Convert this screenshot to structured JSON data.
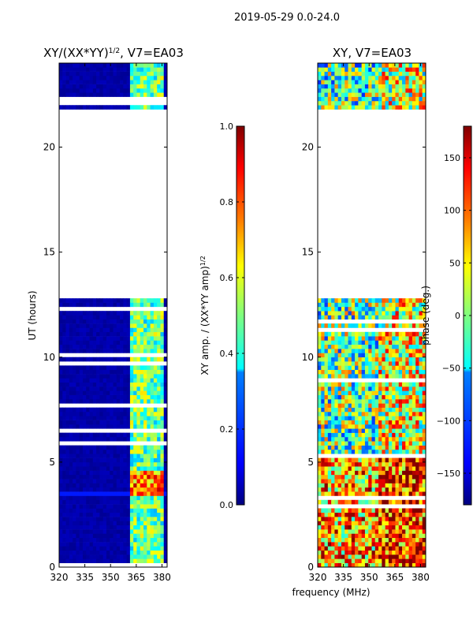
{
  "figure_title": "2019-05-29 0.0-24.0",
  "shared_xlabel": "frequency (MHz)",
  "colormap": [
    "#00007f",
    "#0000ff",
    "#007fff",
    "#00ffff",
    "#7fff7f",
    "#ffff00",
    "#ff7f00",
    "#ff0000",
    "#7f0000"
  ],
  "chart_data": [
    {
      "type": "heatmap",
      "title": "XY/(XX*YY)",
      "title_sup": "1/2",
      "title_suffix": ", V7=EA03",
      "xlabel": "",
      "ylabel": "UT (hours)",
      "xlim": [
        320,
        383
      ],
      "ylim": [
        0,
        24
      ],
      "xticks": [
        320,
        335,
        350,
        365,
        380
      ],
      "yticks": [
        0,
        5,
        10,
        15,
        20
      ],
      "data_gap_hours": [
        12.7,
        21.9
      ],
      "signal_band_mhz": [
        361,
        381
      ],
      "colorbar": {
        "label": "XY amp. / (XX*YY amp)",
        "label_sup": "1/2",
        "range": [
          0.0,
          1.0
        ],
        "ticks": [
          "0.0",
          "0.2",
          "0.4",
          "0.6",
          "0.8",
          "1.0"
        ]
      }
    },
    {
      "type": "heatmap",
      "title": "XY, V7=EA03",
      "xlabel": "",
      "ylabel": "",
      "xlim": [
        320,
        383
      ],
      "ylim": [
        0,
        24
      ],
      "xticks": [
        320,
        335,
        350,
        365,
        380
      ],
      "yticks": [
        0,
        5,
        10,
        15,
        20
      ],
      "data_gap_hours": [
        12.7,
        21.9
      ],
      "colorbar": {
        "label": "phase (deg.)",
        "range": [
          -180,
          180
        ],
        "ticks": [
          "150",
          "100",
          "50",
          "0",
          "−50",
          "−100",
          "−150"
        ]
      }
    }
  ]
}
